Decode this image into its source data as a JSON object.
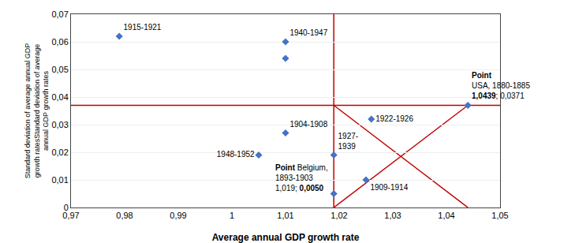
{
  "chart_data": {
    "type": "scatter",
    "x": [
      0.979,
      1.01,
      1.01,
      1.01,
      1.005,
      1.019,
      1.026,
      1.025,
      1.019,
      1.044
    ],
    "values": [
      0.062,
      0.06,
      0.054,
      0.027,
      0.019,
      0.019,
      0.032,
      0.01,
      0.005,
      0.037
    ],
    "labels": [
      "1915-1921",
      "1940-1947",
      null,
      "1904-1908",
      "1948-1952",
      "1927-\n1939",
      "1922-1926",
      "1909-1914",
      null,
      null
    ],
    "color": "#4472C4",
    "marker": "diamond",
    "xlabel": "Average annual GDP growth rate",
    "ylabel": "Standard deviation of average annual GDP\ngrowth ratesStandard deviation of average\nannual GDP growth rates",
    "xlim": [
      0.97,
      1.05
    ],
    "ylim": [
      0.0,
      0.07
    ],
    "xticks": [
      {
        "value": 0.97,
        "label": "0,97"
      },
      {
        "value": 0.98,
        "label": "0,98"
      },
      {
        "value": 0.99,
        "label": "0,99"
      },
      1,
      {
        "value": 1.01,
        "label": "1,01"
      },
      {
        "value": 1.02,
        "label": "1,02"
      },
      {
        "value": 1.03,
        "label": "1,03"
      },
      {
        "value": 1.04,
        "label": "1,04"
      },
      {
        "value": 1.05,
        "label": "1,05"
      }
    ],
    "yticks": [
      0,
      {
        "value": 0.01,
        "label": "0,01"
      },
      {
        "value": 0.02,
        "label": "0,02"
      },
      {
        "value": 0.03,
        "label": "0,03"
      },
      {
        "value": 0.04,
        "label": "0,04"
      },
      {
        "value": 0.05,
        "label": "0,05"
      },
      {
        "value": 0.06,
        "label": "0,06"
      },
      {
        "value": 0.07,
        "label": "0,07"
      }
    ],
    "grid": "y",
    "reference_lines": {
      "color": "#C00000",
      "vline_x": 1.019,
      "hline_y": 0.037,
      "segments": [
        {
          "x": [
            1.019,
            1.044
          ],
          "y": [
            0.037,
            0.0
          ]
        },
        {
          "x": [
            1.019,
            1.044
          ],
          "y": [
            0.0,
            0.037
          ]
        }
      ]
    },
    "annotations": [
      {
        "x": 1.019,
        "y": 0.005,
        "lines": [
          [
            {
              "text": "Point",
              "bold": true
            },
            {
              "text": " Belgium,"
            }
          ],
          [
            {
              "text": "1893-1903"
            }
          ],
          [
            {
              "text": "1,019; "
            },
            {
              "text": "0,0050",
              "bold": true
            }
          ]
        ]
      },
      {
        "x": 1.044,
        "y": 0.037,
        "lines": [
          [
            {
              "text": "Point",
              "bold": true
            }
          ],
          [
            {
              "text": "USA, 1880-1885"
            }
          ],
          [
            {
              "text": "1,0439",
              "bold": true
            },
            {
              "text": "; 0,0371"
            }
          ]
        ]
      }
    ]
  }
}
